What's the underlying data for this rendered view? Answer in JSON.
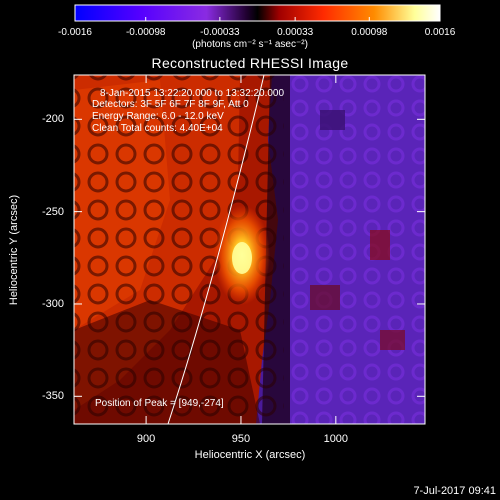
{
  "colorbar": {
    "ticks": [
      "-0.0016",
      "-0.00098",
      "-0.00033",
      "0.00033",
      "0.00098",
      "0.0016"
    ],
    "tick_values": [
      -0.0016,
      -0.00098,
      -0.00033,
      0.00033,
      0.00098,
      0.0016
    ],
    "range": [
      -0.0016,
      0.0016
    ],
    "unit_label": "(photons cm⁻² s⁻¹ asec⁻²)",
    "colors": [
      "#0000ff",
      "#5500ff",
      "#8a2be2",
      "#000000",
      "#a00000",
      "#ff2a00",
      "#ff8c00",
      "#ffff99",
      "#ffffff"
    ]
  },
  "title": "Reconstructed RHESSI Image",
  "annotations": {
    "time": "8-Jan-2015 13:22:20.000 to 13:32:20.000",
    "detectors": "Detectors: 3F 5F 6F 7F 8F 9F, Att 0",
    "energy": "Energy Range: 6.0 - 12.0 keV",
    "clean": "Clean      Total counts: 4.40E+04",
    "peak": "Position of Peak = [949,-274]"
  },
  "axes": {
    "xlabel": "Heliocentric X (arcsec)",
    "ylabel": "Heliocentric Y (arcsec)",
    "xticks": [
      900,
      950,
      1000
    ],
    "yticks": [
      -200,
      -250,
      -300,
      -350
    ],
    "xlim": [
      862,
      1047
    ],
    "ylim": [
      -365,
      -176
    ]
  },
  "image": {
    "peak_position": [
      949,
      -274
    ]
  },
  "footer": "7-Jul-2017 09:41"
}
